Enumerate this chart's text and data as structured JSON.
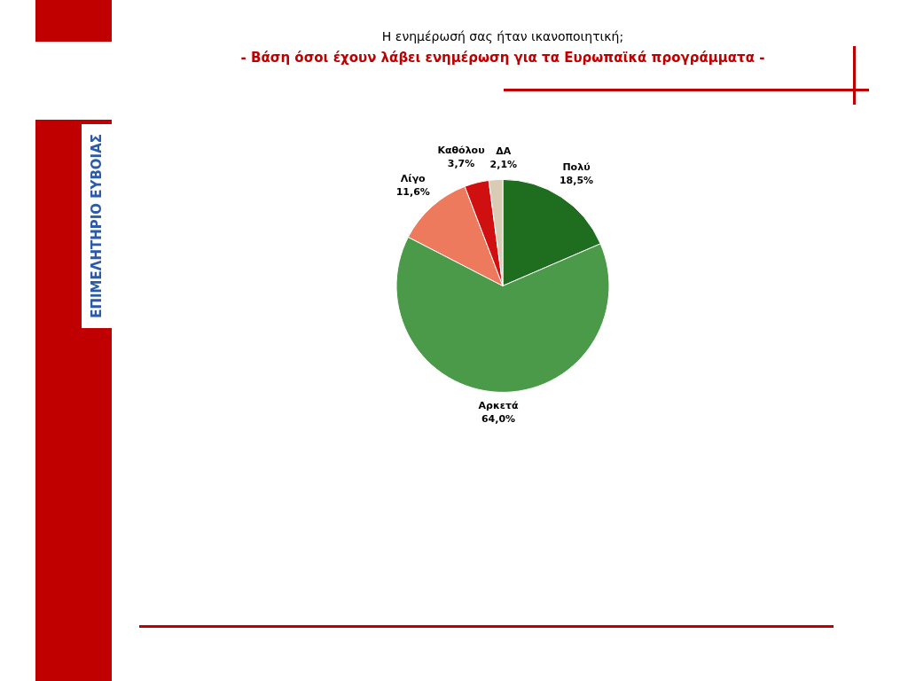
{
  "chart_data": {
    "type": "pie",
    "title": "Η ενημέρωσή σας ήταν ικανοποιητική;",
    "subtitle": "- Βάση όσοι έχουν λάβει ενημέρωση για τα Ευρωπαϊκά προγράμματα -",
    "categories": [
      "Πολύ",
      "Αρκετά",
      "Λίγο",
      "Καθόλου",
      "ΔΑ"
    ],
    "values": [
      18.5,
      64.0,
      11.6,
      3.7,
      2.1
    ],
    "colors": [
      "#1f6e1f",
      "#4a9a4a",
      "#ee7a5e",
      "#d01010",
      "#d9ccb4"
    ],
    "value_labels": [
      "18,5%",
      "64,0%",
      "11,6%",
      "3,7%",
      "2,1%"
    ],
    "legend": false,
    "annotations": [
      "ΕΠΙΜΕΛΗΤΗΡΙΟ ΕΥΒΟΙΑΣ"
    ]
  }
}
